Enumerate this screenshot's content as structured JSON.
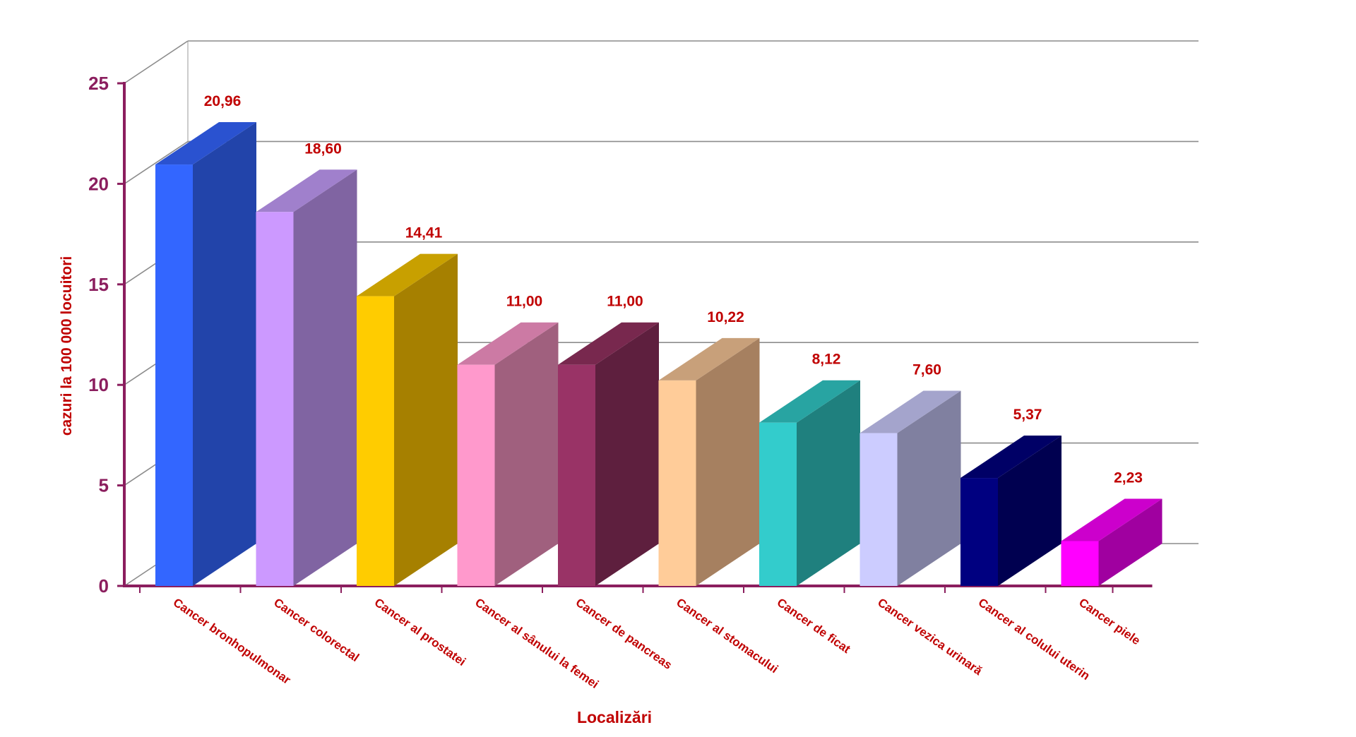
{
  "chart_data": {
    "type": "bar",
    "title": "",
    "xlabel": "Localizări",
    "ylabel": "cazuri la 100 000 locuitori",
    "ylim": [
      0,
      25
    ],
    "yticks": [
      "0",
      "5",
      "10",
      "15",
      "20",
      "25"
    ],
    "grid": true,
    "three_d": true,
    "categories": [
      "Cancer bronhopulmonar",
      "Cancer colorectal",
      "Cancer al prostatei",
      "Cancer al sânului la femei",
      "Cancer de pancreas",
      "Cancer al stomacului",
      "Cancer de ficat",
      "Cancer vezica urinară",
      "Cancer al colului uterin",
      "Cancer piele"
    ],
    "values": [
      20.96,
      18.6,
      14.41,
      11.0,
      11.0,
      10.22,
      8.12,
      7.6,
      5.37,
      2.23
    ],
    "value_labels": [
      "20,96",
      "18,60",
      "14,41",
      "11,00",
      "11,00",
      "10,22",
      "8,12",
      "7,60",
      "5,37",
      "2,23"
    ],
    "colors": [
      {
        "front": "#3366FF",
        "side": "#2244AA",
        "top": "#2A52D0"
      },
      {
        "front": "#CC99FF",
        "side": "#8064A2",
        "top": "#A080CC"
      },
      {
        "front": "#FFCC00",
        "side": "#A68000",
        "top": "#C8A000"
      },
      {
        "front": "#FF99CC",
        "side": "#A0607E",
        "top": "#CC7AA4"
      },
      {
        "front": "#993366",
        "side": "#5E1F3E",
        "top": "#78284E"
      },
      {
        "front": "#FFCC99",
        "side": "#A68060",
        "top": "#C8A07A"
      },
      {
        "front": "#33CCCC",
        "side": "#1F807E",
        "top": "#28A4A2"
      },
      {
        "front": "#CCCCFF",
        "side": "#8080A0",
        "top": "#A4A4CC"
      },
      {
        "front": "#000080",
        "side": "#000050",
        "top": "#000066"
      },
      {
        "front": "#FF00FF",
        "side": "#A000A0",
        "top": "#CC00CC"
      }
    ]
  }
}
